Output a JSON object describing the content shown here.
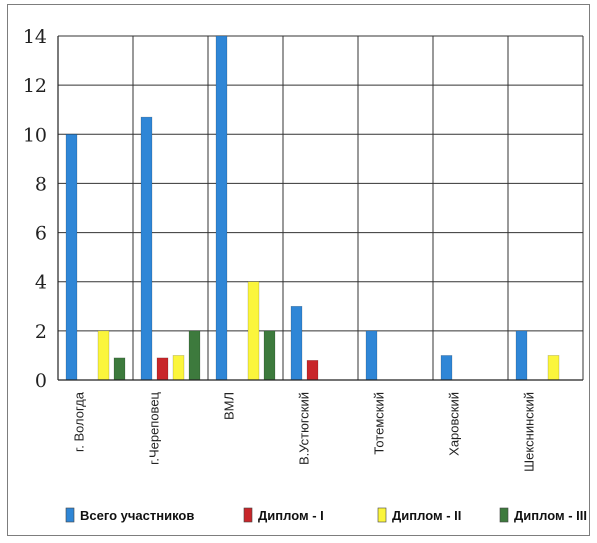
{
  "chart_data": {
    "type": "bar",
    "title": "",
    "xlabel": "",
    "ylabel": "",
    "ylim": [
      0,
      14
    ],
    "yticks": [
      0,
      2,
      4,
      6,
      8,
      10,
      12,
      14
    ],
    "grid": true,
    "legend_position": "bottom",
    "categories": [
      "г. Вологда",
      "г.Череповец",
      "ВМЛ",
      "В.Устюгский",
      "Тотемский",
      "Харовский",
      "Шекснинский"
    ],
    "series": [
      {
        "name": "Всего участников",
        "color": "#2f86d6",
        "values": [
          10,
          10.7,
          14,
          3,
          2,
          1,
          2
        ]
      },
      {
        "name": "Диплом - I",
        "color": "#c8262a",
        "values": [
          0,
          0.9,
          0,
          0.8,
          0,
          0,
          0
        ]
      },
      {
        "name": "Диплом - II",
        "color": "#fbf53c",
        "values": [
          2,
          1,
          4,
          0,
          0,
          0,
          1
        ]
      },
      {
        "name": "Диплом - III",
        "color": "#3d7a3d",
        "values": [
          0.9,
          2,
          2,
          0,
          0,
          0,
          0
        ]
      }
    ]
  }
}
